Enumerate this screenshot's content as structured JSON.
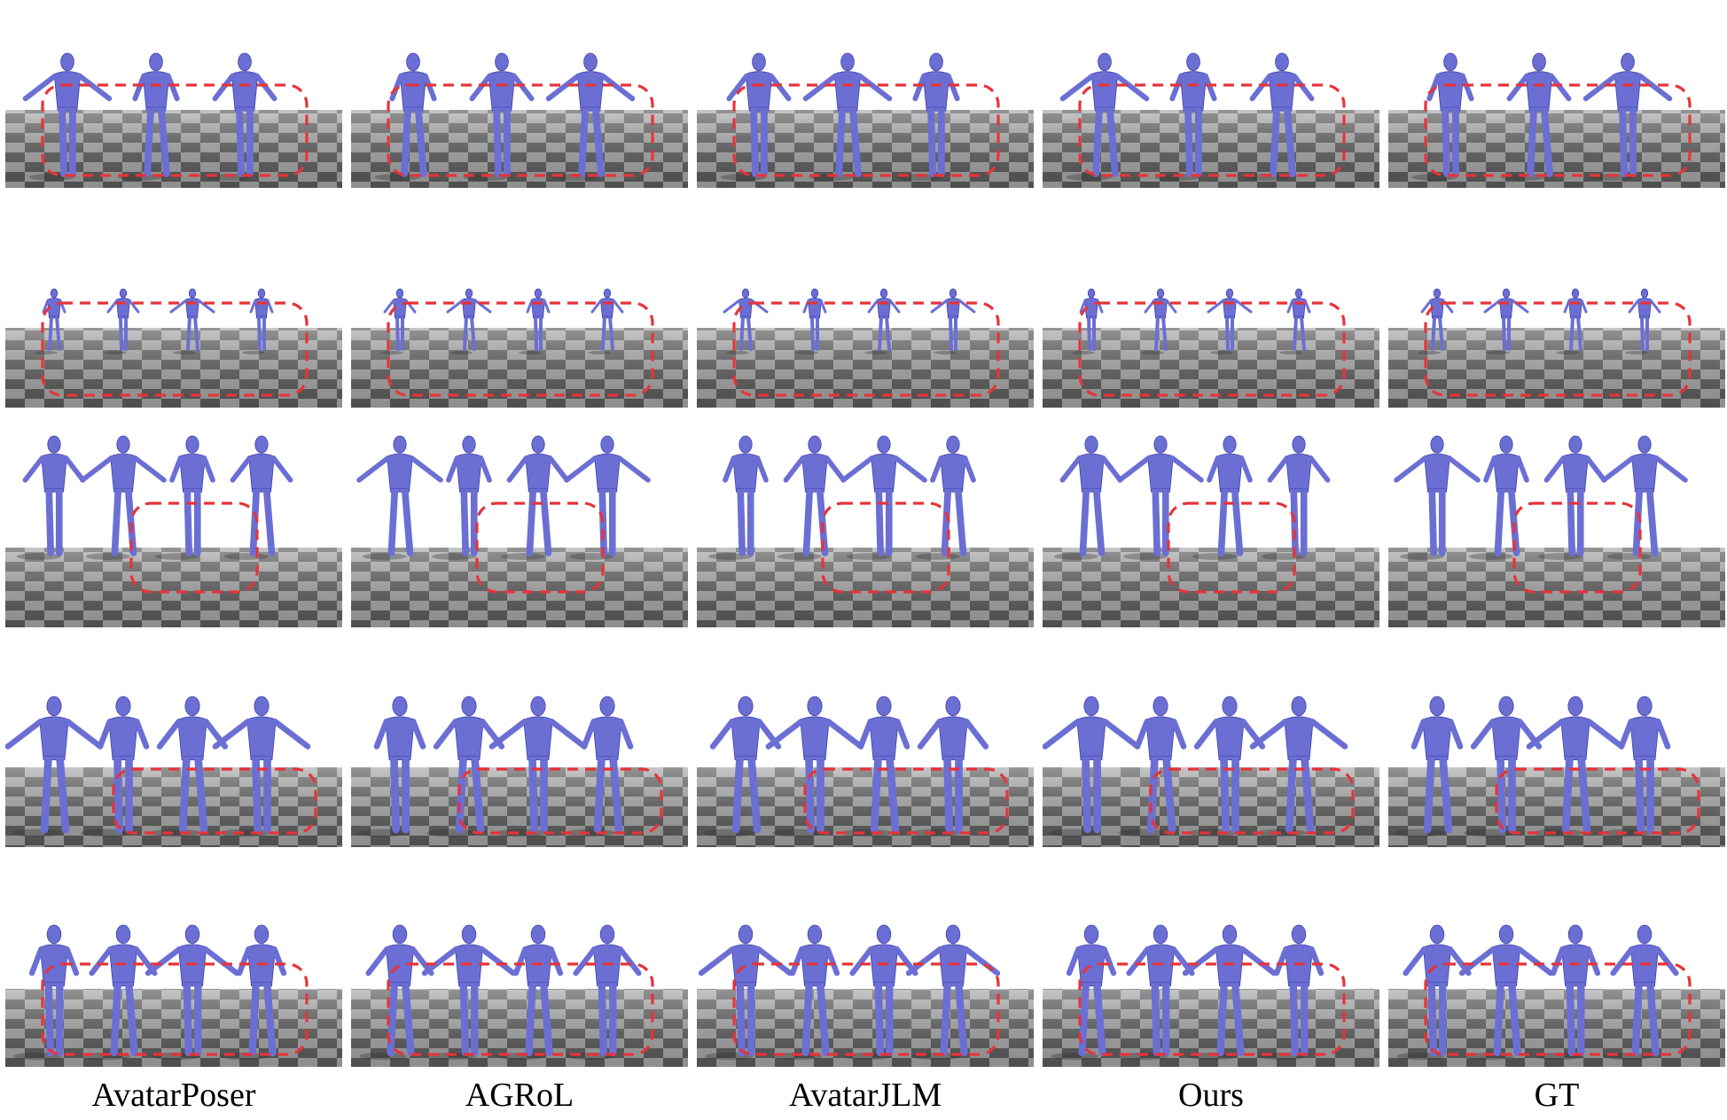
{
  "figure": {
    "columns": [
      {
        "label": "AvatarPoser"
      },
      {
        "label": "AGRoL"
      },
      {
        "label": "AvatarJLM"
      },
      {
        "label": "Ours"
      },
      {
        "label": "GT"
      }
    ],
    "rows": [
      {
        "figure_count": 3,
        "highlight": "wide"
      },
      {
        "figure_count": 4,
        "highlight": "wide"
      },
      {
        "figure_count": 4,
        "highlight": "center"
      },
      {
        "figure_count": 4,
        "highlight": "right"
      },
      {
        "figure_count": 4,
        "highlight": "wide"
      }
    ]
  },
  "colors": {
    "avatar": "#6b6fd4",
    "avatar_dark": "#3f42a8",
    "floor_light": "#a8a8a8",
    "floor_dark": "#5c5c5c",
    "highlight_dash": "#e5343a",
    "background": "#ffffff"
  },
  "icons": {
    "avatar": "human-body-mesh",
    "highlight": "dashed-rounded-box"
  }
}
